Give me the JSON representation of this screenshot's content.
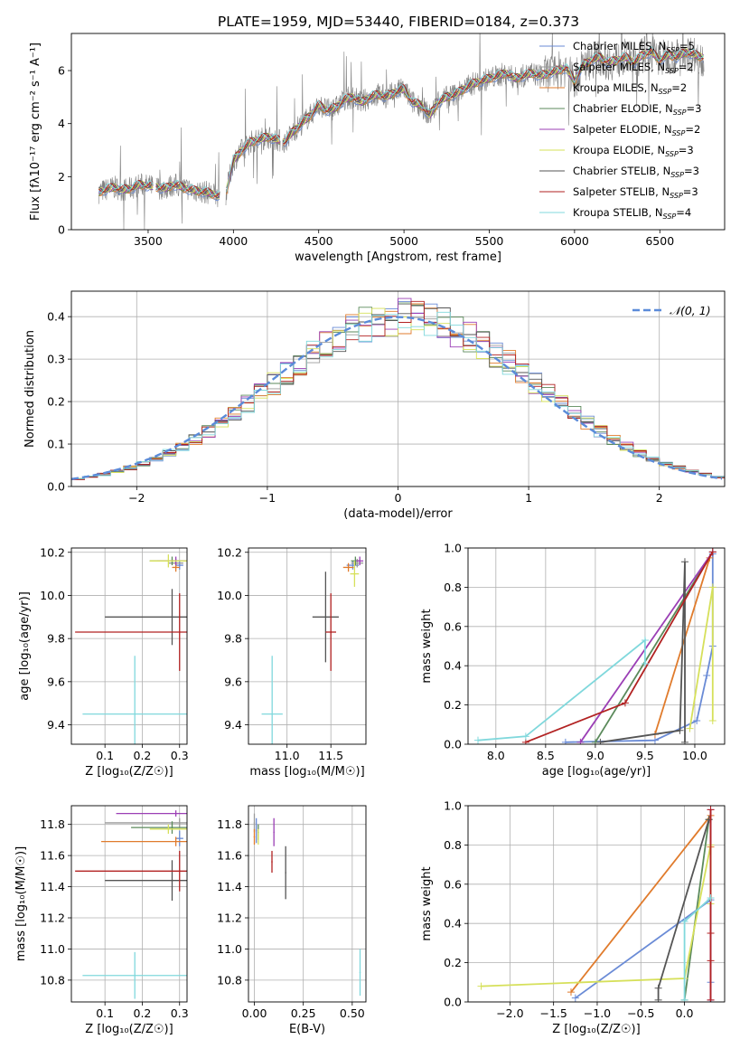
{
  "figure_title": "PLATE=1959, MJD=53440, FIBERID=0184, z=0.373",
  "colors": {
    "Chabrier MILES": "#6a8bd6",
    "Salpeter MILES": "#9a9a9a",
    "Kroupa MILES": "#e07b2c",
    "Chabrier ELODIE": "#5b8a5b",
    "Salpeter ELODIE": "#9b3fb5",
    "Kroupa ELODIE": "#d6e05a",
    "Chabrier STELIB": "#555555",
    "Salpeter STELIB": "#b22222",
    "Kroupa STELIB": "#80d8dc",
    "data": "#808080",
    "gaussian": "#5b8bd9"
  },
  "chart_data": [
    {
      "id": "spectrum",
      "type": "line",
      "title": "PLATE=1959, MJD=53440, FIBERID=0184, z=0.373",
      "xlabel": "wavelength [Angstrom, rest frame]",
      "ylabel": "Flux [fλ10⁻¹⁷ erg cm⁻² s⁻¹ A⁻¹]",
      "xlim": [
        3050,
        6880
      ],
      "ylim": [
        0,
        7.4
      ],
      "xticks": [
        3500,
        4000,
        4500,
        5000,
        5500,
        6000,
        6500
      ],
      "yticks": [
        0,
        2,
        4,
        6
      ],
      "grid": false,
      "legend_position": "top-right",
      "legend": [
        "Chabrier MILES, N_SSP=5",
        "Salpeter MILES, N_SSP=2",
        "Kroupa MILES, N_SSP=2",
        "Chabrier ELODIE, N_SSP=3",
        "Salpeter ELODIE, N_SSP=2",
        "Kroupa ELODIE, N_SSP=3",
        "Chabrier STELIB, N_SSP=3",
        "Salpeter STELIB, N_SSP=3",
        "Kroupa STELIB, N_SSP=4"
      ],
      "model_points": {
        "x": [
          3200,
          3250,
          3300,
          3350,
          3400,
          3450,
          3500,
          3550,
          3600,
          3650,
          3700,
          3750,
          3800,
          3850,
          3900,
          3950,
          4000,
          4050,
          4100,
          4150,
          4200,
          4250,
          4300,
          4350,
          4400,
          4450,
          4500,
          4550,
          4600,
          4650,
          4700,
          4750,
          4800,
          4850,
          4900,
          4950,
          5000,
          5050,
          5100,
          5150,
          5200,
          5250,
          5300,
          5350,
          5400,
          5450,
          5500,
          5550,
          5600,
          5650,
          5700,
          5750,
          5800,
          5850,
          5900,
          5950,
          6000,
          6050,
          6100,
          6150,
          6200,
          6250,
          6300,
          6350,
          6400,
          6450,
          6500,
          6550,
          6600,
          6650,
          6700,
          6750
        ],
        "y": [
          1.4,
          1.5,
          1.6,
          1.5,
          1.55,
          1.7,
          1.65,
          1.6,
          1.55,
          1.7,
          1.6,
          1.5,
          1.45,
          1.4,
          1.3,
          1.2,
          2.6,
          3.0,
          3.3,
          3.4,
          3.5,
          3.4,
          3.3,
          3.7,
          4.0,
          4.3,
          4.7,
          4.5,
          4.6,
          4.9,
          5.0,
          4.8,
          5.0,
          5.1,
          5.0,
          5.2,
          5.3,
          4.8,
          4.7,
          4.3,
          4.8,
          5.0,
          5.1,
          5.3,
          5.5,
          5.6,
          5.7,
          5.8,
          5.9,
          5.7,
          5.8,
          5.9,
          5.8,
          5.9,
          6.0,
          6.1,
          5.6,
          6.2,
          6.4,
          6.5,
          6.3,
          6.4,
          6.5,
          6.3,
          6.6,
          6.7,
          6.4,
          6.6,
          6.5,
          6.7,
          6.6,
          6.5
        ]
      }
    },
    {
      "id": "residuals",
      "type": "line",
      "xlabel": "(data-model)/error",
      "ylabel": "Normed distribution",
      "xlim": [
        -2.5,
        2.5
      ],
      "ylim": [
        0,
        0.46
      ],
      "xticks": [
        -2,
        -1,
        0,
        1,
        2
      ],
      "yticks": [
        0.0,
        0.1,
        0.2,
        0.3,
        0.4
      ],
      "grid": true,
      "legend_position": "top-right",
      "legend": [
        "𝒩(0, 1)"
      ]
    },
    {
      "id": "age_vs_Z",
      "type": "scatter",
      "xlabel": "Z [log₁₀(Z/Z☉)]",
      "ylabel": "age  [log₁₀(age/yr)]",
      "xlim": [
        0.01,
        0.32
      ],
      "ylim": [
        9.31,
        10.22
      ],
      "xticks": [
        0.1,
        0.2,
        0.3
      ],
      "yticks": [
        9.4,
        9.6,
        9.8,
        10.0,
        10.2
      ],
      "grid": true,
      "points": [
        {
          "model": "Chabrier MILES",
          "x": 0.3,
          "xerr": 0.01,
          "y": 10.14,
          "yerr": 0.02
        },
        {
          "model": "Salpeter MILES",
          "x": 0.29,
          "xerr": 0.02,
          "y": 10.15,
          "yerr": 0.02
        },
        {
          "model": "Kroupa MILES",
          "x": 0.29,
          "xerr": 0.01,
          "y": 10.13,
          "yerr": 0.02
        },
        {
          "model": "Chabrier ELODIE",
          "x": 0.28,
          "xerr": 0.06,
          "y": 10.16,
          "yerr": 0.02
        },
        {
          "model": "Salpeter ELODIE",
          "x": 0.29,
          "xerr": 0.05,
          "y": 10.16,
          "yerr": 0.02
        },
        {
          "model": "Kroupa ELODIE",
          "x": 0.27,
          "xerr": 0.05,
          "y": 10.16,
          "yerr": 0.03
        },
        {
          "model": "Chabrier STELIB",
          "x": 0.28,
          "xerr": 0.18,
          "y": 9.9,
          "yerr": 0.13
        },
        {
          "model": "Salpeter STELIB",
          "x": 0.3,
          "xerr": 0.28,
          "y": 9.83,
          "yerr": 0.18
        },
        {
          "model": "Kroupa STELIB",
          "x": 0.18,
          "xerr": 0.14,
          "y": 9.45,
          "yerr": 0.27
        }
      ]
    },
    {
      "id": "age_vs_mass",
      "type": "scatter",
      "xlabel": "mass [log₁₀(M/M☉)]",
      "ylabel": "",
      "xlim": [
        10.56,
        11.9
      ],
      "ylim": [
        9.31,
        10.22
      ],
      "xticks": [
        11.0,
        11.5
      ],
      "yticks": [
        9.4,
        9.6,
        9.8,
        10.0,
        10.2
      ],
      "grid": true,
      "points": [
        {
          "model": "Chabrier MILES",
          "x": 11.75,
          "xerr": 0.07,
          "y": 10.14,
          "yerr": 0.02
        },
        {
          "model": "Salpeter MILES",
          "x": 11.8,
          "xerr": 0.07,
          "y": 10.15,
          "yerr": 0.02
        },
        {
          "model": "Kroupa MILES",
          "x": 11.7,
          "xerr": 0.06,
          "y": 10.13,
          "yerr": 0.02
        },
        {
          "model": "Chabrier ELODIE",
          "x": 11.78,
          "xerr": 0.05,
          "y": 10.16,
          "yerr": 0.02
        },
        {
          "model": "Salpeter ELODIE",
          "x": 11.83,
          "xerr": 0.04,
          "y": 10.16,
          "yerr": 0.02
        },
        {
          "model": "Kroupa ELODIE",
          "x": 11.77,
          "xerr": 0.05,
          "y": 10.1,
          "yerr": 0.06
        },
        {
          "model": "Chabrier STELIB",
          "x": 11.44,
          "xerr": 0.15,
          "y": 9.9,
          "yerr": 0.21
        },
        {
          "model": "Salpeter STELIB",
          "x": 11.5,
          "xerr": 0.06,
          "y": 9.83,
          "yerr": 0.18
        },
        {
          "model": "Kroupa STELIB",
          "x": 10.83,
          "xerr": 0.12,
          "y": 9.45,
          "yerr": 0.27
        }
      ]
    },
    {
      "id": "mass_weight_vs_age",
      "type": "line",
      "xlabel": "age  [log₁₀(age/yr)]",
      "ylabel": "mass weight",
      "xlim": [
        7.72,
        10.3
      ],
      "ylim": [
        0,
        1
      ],
      "xticks": [
        8.0,
        8.5,
        9.0,
        9.5,
        10.0
      ],
      "yticks": [
        0.0,
        0.2,
        0.4,
        0.6,
        0.8,
        1.0
      ],
      "grid": true,
      "series": [
        {
          "model": "Chabrier MILES",
          "x": [
            8.7,
            9.6,
            10.02,
            10.12,
            10.18,
            10.18
          ],
          "y": [
            0.01,
            0.02,
            0.12,
            0.35,
            0.5,
            0.97
          ]
        },
        {
          "model": "Kroupa MILES",
          "x": [
            9.6,
            10.15
          ],
          "y": [
            0.05,
            0.95
          ]
        },
        {
          "model": "Chabrier ELODIE",
          "x": [
            9.0,
            10.18
          ],
          "y": [
            0.01,
            0.98
          ]
        },
        {
          "model": "Salpeter ELODIE",
          "x": [
            8.85,
            10.18
          ],
          "y": [
            0.01,
            0.98
          ]
        },
        {
          "model": "Kroupa ELODIE",
          "x": [
            9.95,
            10.18,
            10.18
          ],
          "y": [
            0.08,
            0.8,
            0.12
          ]
        },
        {
          "model": "Chabrier STELIB",
          "x": [
            9.05,
            9.85,
            9.9,
            9.9
          ],
          "y": [
            0.01,
            0.07,
            0.93,
            0.01
          ]
        },
        {
          "model": "Salpeter STELIB",
          "x": [
            8.3,
            9.3,
            10.18
          ],
          "y": [
            0.01,
            0.21,
            0.98
          ]
        },
        {
          "model": "Kroupa STELIB",
          "x": [
            7.82,
            8.3,
            9.5,
            9.5
          ],
          "y": [
            0.02,
            0.04,
            0.53,
            0.41
          ]
        }
      ]
    },
    {
      "id": "mass_vs_Z",
      "type": "scatter",
      "xlabel": "Z [log₁₀(Z/Z☉)]",
      "ylabel": "mass [log₁₀(M/M☉)]",
      "xlim": [
        0.01,
        0.32
      ],
      "ylim": [
        10.66,
        11.92
      ],
      "xticks": [
        0.1,
        0.2,
        0.3
      ],
      "yticks": [
        10.8,
        11.0,
        11.2,
        11.4,
        11.6,
        11.8
      ],
      "grid": true,
      "points": [
        {
          "model": "Chabrier MILES",
          "x": 0.3,
          "xerr": 0.01,
          "y": 11.71,
          "yerr": 0.05
        },
        {
          "model": "Salpeter MILES",
          "x": 0.3,
          "xerr": 0.2,
          "y": 11.81,
          "yerr": 0.03
        },
        {
          "model": "Kroupa MILES",
          "x": 0.29,
          "xerr": 0.2,
          "y": 11.69,
          "yerr": 0.03
        },
        {
          "model": "Chabrier ELODIE",
          "x": 0.28,
          "xerr": 0.11,
          "y": 11.78,
          "yerr": 0.04
        },
        {
          "model": "Salpeter ELODIE",
          "x": 0.29,
          "xerr": 0.16,
          "y": 11.87,
          "yerr": 0.02
        },
        {
          "model": "Kroupa ELODIE",
          "x": 0.27,
          "xerr": 0.05,
          "y": 11.77,
          "yerr": 0.03
        },
        {
          "model": "Chabrier STELIB",
          "x": 0.28,
          "xerr": 0.18,
          "y": 11.44,
          "yerr": 0.13
        },
        {
          "model": "Salpeter STELIB",
          "x": 0.3,
          "xerr": 0.28,
          "y": 11.5,
          "yerr": 0.13
        },
        {
          "model": "Kroupa STELIB",
          "x": 0.18,
          "xerr": 0.14,
          "y": 10.83,
          "yerr": 0.15
        }
      ]
    },
    {
      "id": "mass_vs_ebv",
      "type": "scatter",
      "xlabel": "E(B-V)",
      "ylabel": "",
      "xlim": [
        -0.03,
        0.57
      ],
      "ylim": [
        10.66,
        11.92
      ],
      "xticks": [
        0.0,
        0.25,
        0.5
      ],
      "yticks": [
        10.8,
        11.0,
        11.2,
        11.4,
        11.6,
        11.8
      ],
      "grid": true,
      "points": [
        {
          "model": "Chabrier MILES",
          "x": 0.01,
          "xerr": 0.0,
          "y": 11.76,
          "yerr": 0.08
        },
        {
          "model": "Salpeter MILES",
          "x": 0.0,
          "xerr": 0.0,
          "y": 11.81,
          "yerr": 0.06
        },
        {
          "model": "Kroupa MILES",
          "x": 0.0,
          "xerr": 0.0,
          "y": 11.72,
          "yerr": 0.05
        },
        {
          "model": "Chabrier ELODIE",
          "x": 0.02,
          "xerr": 0.0,
          "y": 11.75,
          "yerr": 0.05
        },
        {
          "model": "Salpeter ELODIE",
          "x": 0.1,
          "xerr": 0.0,
          "y": 11.75,
          "yerr": 0.09
        },
        {
          "model": "Kroupa ELODIE",
          "x": 0.02,
          "xerr": 0.0,
          "y": 11.72,
          "yerr": 0.05
        },
        {
          "model": "Chabrier STELIB",
          "x": 0.16,
          "xerr": 0.0,
          "y": 11.49,
          "yerr": 0.17
        },
        {
          "model": "Salpeter STELIB",
          "x": 0.09,
          "xerr": 0.0,
          "y": 11.56,
          "yerr": 0.07
        },
        {
          "model": "Kroupa STELIB",
          "x": 0.54,
          "xerr": 0.0,
          "y": 10.85,
          "yerr": 0.15
        }
      ]
    },
    {
      "id": "mass_weight_vs_Z",
      "type": "line",
      "xlabel": "Z [log₁₀(Z/Z☉)]",
      "ylabel": "mass weight",
      "xlim": [
        -2.48,
        0.46
      ],
      "ylim": [
        0,
        1
      ],
      "xticks": [
        -2.0,
        -1.5,
        -1.0,
        -0.5,
        0.0
      ],
      "yticks": [
        0.0,
        0.2,
        0.4,
        0.6,
        0.8,
        1.0
      ],
      "grid": true,
      "series": [
        {
          "model": "Chabrier MILES",
          "x": [
            -1.25,
            0.3,
            0.3,
            0.3
          ],
          "y": [
            0.02,
            0.52,
            0.1,
            0.0
          ]
        },
        {
          "model": "Kroupa MILES",
          "x": [
            -1.3,
            0.3,
            0.3
          ],
          "y": [
            0.05,
            0.95,
            0.79
          ]
        },
        {
          "model": "Chabrier ELODIE",
          "x": [
            0.0,
            0.28
          ],
          "y": [
            0.01,
            0.93
          ]
        },
        {
          "model": "Salpeter ELODIE",
          "x": [
            0.3,
            0.3
          ],
          "y": [
            0.01,
            0.98
          ]
        },
        {
          "model": "Kroupa ELODIE",
          "x": [
            -2.33,
            0.0,
            0.3,
            0.3
          ],
          "y": [
            0.08,
            0.12,
            0.8,
            0.5
          ]
        },
        {
          "model": "Chabrier STELIB",
          "x": [
            -0.3,
            -0.3,
            0.28
          ],
          "y": [
            0.01,
            0.07,
            0.93
          ]
        },
        {
          "model": "Salpeter STELIB",
          "x": [
            0.3,
            0.3,
            0.3,
            0.3
          ],
          "y": [
            0.01,
            0.21,
            0.35,
            0.98
          ]
        },
        {
          "model": "Kroupa STELIB",
          "x": [
            0.0,
            0.0,
            0.3
          ],
          "y": [
            0.01,
            0.41,
            0.53
          ]
        }
      ]
    }
  ]
}
